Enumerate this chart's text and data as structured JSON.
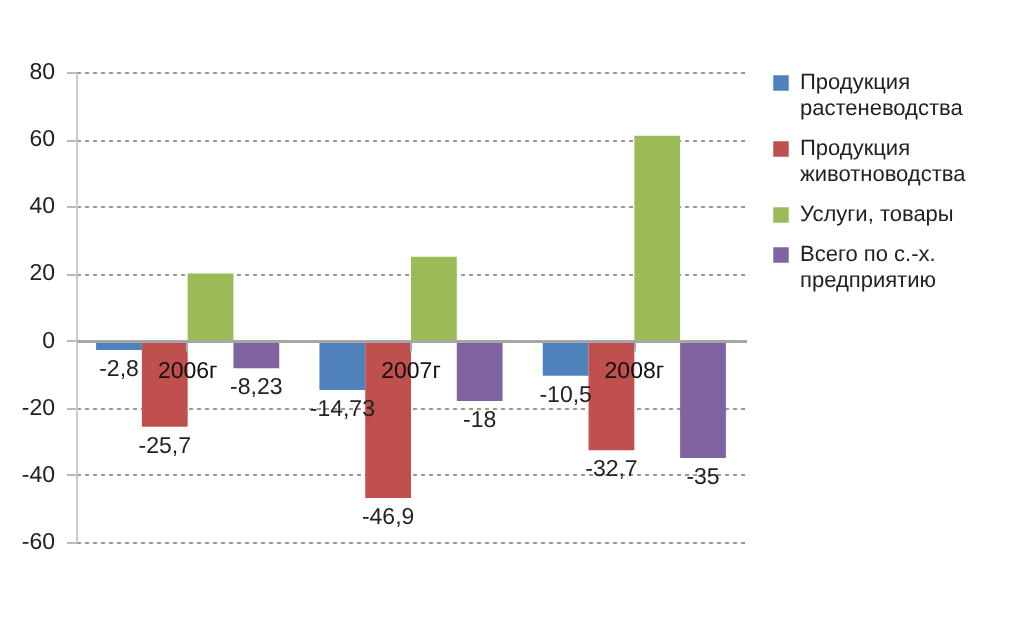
{
  "chart_data": {
    "type": "bar",
    "categories": [
      "2006г",
      "2007г",
      "2008г"
    ],
    "series": [
      {
        "name": "Продукция растеневодства",
        "color": "#4f81bd",
        "values": [
          -2.8,
          -14.73,
          -10.5
        ],
        "value_labels": [
          "-2,8",
          "-14,73",
          "-10,5"
        ]
      },
      {
        "name": "Продукция животноводства",
        "color": "#c0504d",
        "values": [
          -25.7,
          -46.9,
          -32.7
        ],
        "value_labels": [
          "-25,7",
          "-46,9",
          "-32,7"
        ]
      },
      {
        "name": "Услуги, товары",
        "color": "#9bbb59",
        "values": [
          20,
          25,
          61
        ],
        "value_labels": [
          null,
          null,
          null
        ]
      },
      {
        "name": "Всего по с.-х. предприятию",
        "color": "#8064a2",
        "values": [
          -8.23,
          -18,
          -35
        ],
        "value_labels": [
          "-8,23",
          "-18",
          "-35"
        ]
      }
    ],
    "ylim": [
      -60,
      80
    ],
    "yticks": [
      -60,
      -40,
      -20,
      0,
      20,
      40,
      60,
      80
    ],
    "grid": "y",
    "legend": "right"
  }
}
